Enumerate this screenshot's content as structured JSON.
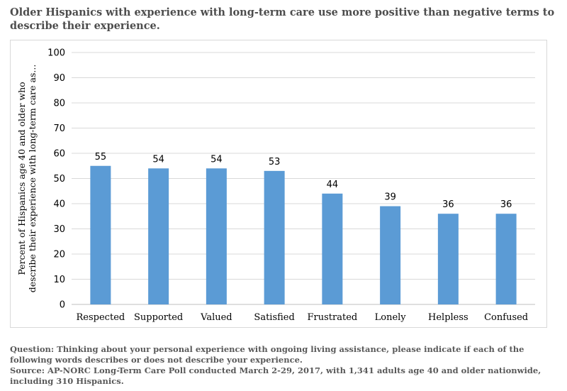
{
  "title": "Older Hispanics with experience with long-term care use more positive than negative terms to describe their experience.",
  "footer": {
    "question": "Question: Thinking about your personal experience with ongoing living assistance, please indicate if each of the following words describes or does not describe your experience.",
    "source": "Source: AP-NORC Long-Term Care Poll conducted March 2-29, 2017, with 1,341 adults age 40 and older nationwide, including 310 Hispanics."
  },
  "chart_data": {
    "type": "bar",
    "categories": [
      "Respected",
      "Supported",
      "Valued",
      "Satisfied",
      "Frustrated",
      "Lonely",
      "Helpless",
      "Confused"
    ],
    "values": [
      55,
      54,
      54,
      53,
      44,
      39,
      36,
      36
    ],
    "xlabel": "",
    "ylabel_lines": [
      "Percent of Hispanics age 40 and older who",
      "describe their experience with long-term care as..."
    ],
    "ylim": [
      0,
      100
    ],
    "yticks": [
      0,
      10,
      20,
      30,
      40,
      50,
      60,
      70,
      80,
      90,
      100
    ],
    "grid": true,
    "legend": "none",
    "bar_color": "#5b9bd5"
  }
}
